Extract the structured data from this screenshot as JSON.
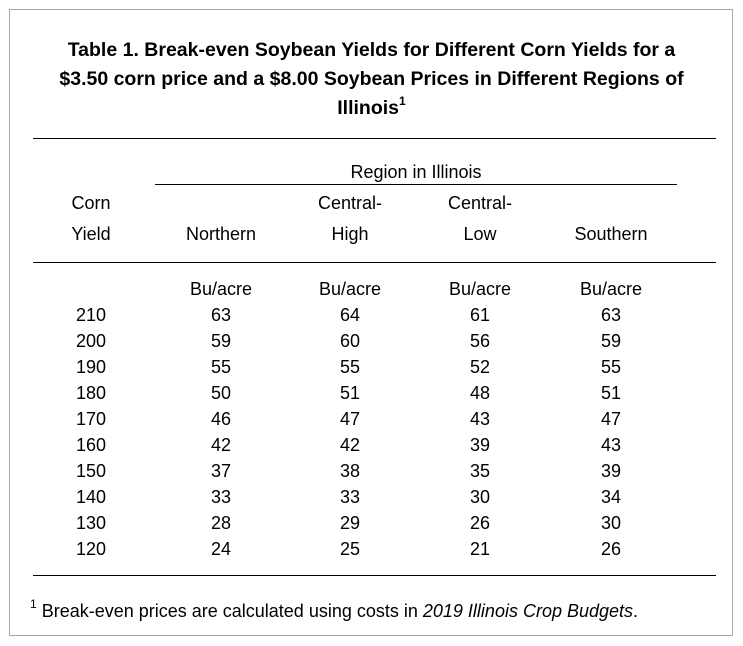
{
  "table": {
    "title_lines": [
      "Table 1. Break-even Soybean Yields for Different Corn Yields for a",
      "$3.50 corn price and a $8.00 Soybean Prices in Different Regions of",
      "Illinois"
    ],
    "title_sup": "1",
    "group_header": "Region in Illinois",
    "corn_header": [
      "Corn",
      "Yield"
    ],
    "columns": [
      {
        "top": "",
        "bottom": "Northern"
      },
      {
        "top": "Central-",
        "bottom": "High"
      },
      {
        "top": "Central-",
        "bottom": "Low"
      },
      {
        "top": "",
        "bottom": "Southern"
      }
    ],
    "unit": "Bu/acre",
    "rows": [
      {
        "corn": "210",
        "values": [
          "63",
          "64",
          "61",
          "63"
        ]
      },
      {
        "corn": "200",
        "values": [
          "59",
          "60",
          "56",
          "59"
        ]
      },
      {
        "corn": "190",
        "values": [
          "55",
          "55",
          "52",
          "55"
        ]
      },
      {
        "corn": "180",
        "values": [
          "50",
          "51",
          "48",
          "51"
        ]
      },
      {
        "corn": "170",
        "values": [
          "46",
          "47",
          "43",
          "47"
        ]
      },
      {
        "corn": "160",
        "values": [
          "42",
          "42",
          "39",
          "43"
        ]
      },
      {
        "corn": "150",
        "values": [
          "37",
          "38",
          "35",
          "39"
        ]
      },
      {
        "corn": "140",
        "values": [
          "33",
          "33",
          "30",
          "34"
        ]
      },
      {
        "corn": "130",
        "values": [
          "28",
          "29",
          "26",
          "30"
        ]
      },
      {
        "corn": "120",
        "values": [
          "24",
          "25",
          "21",
          "26"
        ]
      }
    ],
    "footnote": {
      "sup": "1",
      "text": " Break-even prices are calculated using costs in ",
      "italic": "2019 Illinois Crop Budgets",
      "end": "."
    }
  }
}
